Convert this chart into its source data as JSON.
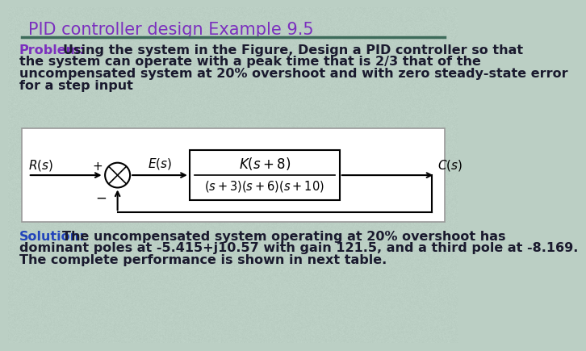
{
  "title": "PID controller design Example 9.5",
  "title_color": "#7B2FBE",
  "title_fontsize": 15,
  "divider_color": "#3D6B5A",
  "bg_color": "#BBCFC4",
  "problem_label": "Problem:",
  "problem_label_color": "#7B2FBE",
  "problem_body": "Using the system in the Figure, Design a PID controller so that\nthe system can operate with a peak time that is 2/3 that of the\nuncompensated system at 20% overshoot and with zero steady-state error\nfor a step input",
  "solution_label": "Solution:",
  "solution_label_color": "#2244BB",
  "solution_body": "The uncompensated system operating at 20% overshoot has\ndominant poles at -5.415+j10.57 with gain 121.5, and a third pole at -8.169.\nThe complete performance is shown in next table.",
  "text_color": "#1a1a2e",
  "diagram_bg": "#FFFFFF",
  "diagram_border": "#999999"
}
